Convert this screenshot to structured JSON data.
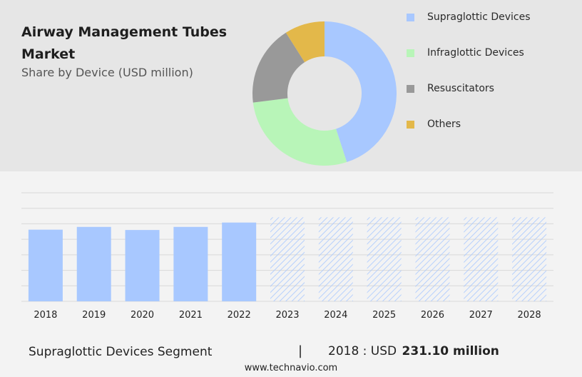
{
  "title": "Airway Management Tubes Market",
  "subtitle": "Share by Device (USD million)",
  "colors": {
    "bar": "#a8c8ff",
    "forecast_hatch": "#a8c8ff",
    "grid": "#d9d9d9"
  },
  "chart_data": [
    {
      "type": "pie",
      "style": "donut",
      "title": "Airway Management Tubes Market",
      "subtitle": "Share by Device (USD million)",
      "legend_position": "right",
      "slices": [
        {
          "label": "Supraglottic Devices",
          "value": 45,
          "color": "#a8c8ff"
        },
        {
          "label": "Infraglottic Devices",
          "value": 28,
          "color": "#b8f5b8"
        },
        {
          "label": "Resuscitators",
          "value": 18,
          "color": "#999999"
        },
        {
          "label": "Others",
          "value": 9,
          "color": "#e3b84a"
        }
      ]
    },
    {
      "type": "bar",
      "categories": [
        "2018",
        "2019",
        "2020",
        "2021",
        "2022",
        "2023",
        "2024",
        "2025",
        "2026",
        "2027",
        "2028"
      ],
      "values": [
        231.1,
        240,
        230,
        240,
        254,
        null,
        null,
        null,
        null,
        null,
        null
      ],
      "forecast_categories": [
        "2023",
        "2024",
        "2025",
        "2026",
        "2027",
        "2028"
      ],
      "ylim": [
        0,
        350
      ],
      "grid": true,
      "xlabel": "",
      "ylabel": ""
    }
  ],
  "footer": {
    "segment": "Supraglottic Devices Segment",
    "divider": "|",
    "year_label": "2018 : USD",
    "value": "231.10 million",
    "site": "www.technavio.com"
  }
}
